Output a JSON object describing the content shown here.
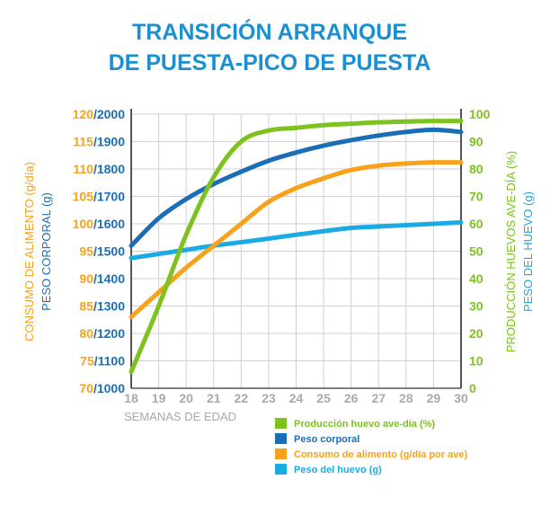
{
  "chart_data": {
    "type": "line",
    "title": [
      "TRANSICIÓN ARRANQUE",
      "DE PUESTA-PICO DE PUESTA"
    ],
    "x": [
      18,
      19,
      20,
      21,
      22,
      23,
      24,
      25,
      26,
      27,
      28,
      29,
      30
    ],
    "xlabel": "SEMANAS DE EDAD",
    "xlim": [
      18,
      30
    ],
    "left_axis": {
      "ticks_a": [
        "70",
        "75",
        "80",
        "85",
        "90",
        "95",
        "100",
        "105",
        "110",
        "115",
        "120"
      ],
      "ticks_b": [
        "1000",
        "1100",
        "1200",
        "1300",
        "1400",
        "1500",
        "1600",
        "1700",
        "1800",
        "1900",
        "2000"
      ],
      "label_a": "CONSUMO DE ALIMENTO (g/día)",
      "label_b": "PESO CORPORAL (g)",
      "ylim_a": [
        70,
        120
      ],
      "ylim_b": [
        1000,
        2000
      ]
    },
    "right_axis": {
      "ticks": [
        "0",
        "10",
        "20",
        "30",
        "40",
        "50",
        "60",
        "70",
        "80",
        "90",
        "100"
      ],
      "label_a": "PRODUCCIÓN HUEVOS AVE-DÍA (%)",
      "label_b": "PESO DEL HUEVO (g)",
      "ylim": [
        0,
        100
      ]
    },
    "grid": true,
    "legend_position": "bottom-right",
    "series": [
      {
        "name": "Producción huevo ave-día (%)",
        "axis": "right",
        "color": "#7dc21e",
        "values": [
          6,
          30,
          56,
          77,
          90,
          94,
          95,
          96,
          96.5,
          97,
          97.3,
          97.5,
          97.5
        ]
      },
      {
        "name": "Peso corporal",
        "axis": "left_b",
        "color": "#1a6eb5",
        "values": [
          1520,
          1620,
          1690,
          1745,
          1790,
          1830,
          1860,
          1885,
          1905,
          1922,
          1935,
          1943,
          1935
        ]
      },
      {
        "name": "Consumo de alimento (g/día por ave)",
        "axis": "left_a",
        "color": "#f7a21b",
        "values": [
          83,
          87.5,
          92,
          96,
          100,
          104,
          106.5,
          108.3,
          109.8,
          110.6,
          111,
          111.2,
          111.2
        ]
      },
      {
        "name": "Peso del huevo (g)",
        "axis": "right",
        "color": "#1aabe2",
        "values": [
          47.5,
          49,
          50.5,
          52,
          53.3,
          54.6,
          56,
          57.3,
          58.5,
          59,
          59.5,
          60,
          60.5
        ]
      }
    ],
    "colors": {
      "title": "#1a8fd1",
      "left_tick_a": "#f7a21b",
      "left_tick_b": "#1a6eb5",
      "right_tick": "#7dc21e",
      "x_tick": "#a9a9a9",
      "grid": "#d0d0d0"
    }
  }
}
